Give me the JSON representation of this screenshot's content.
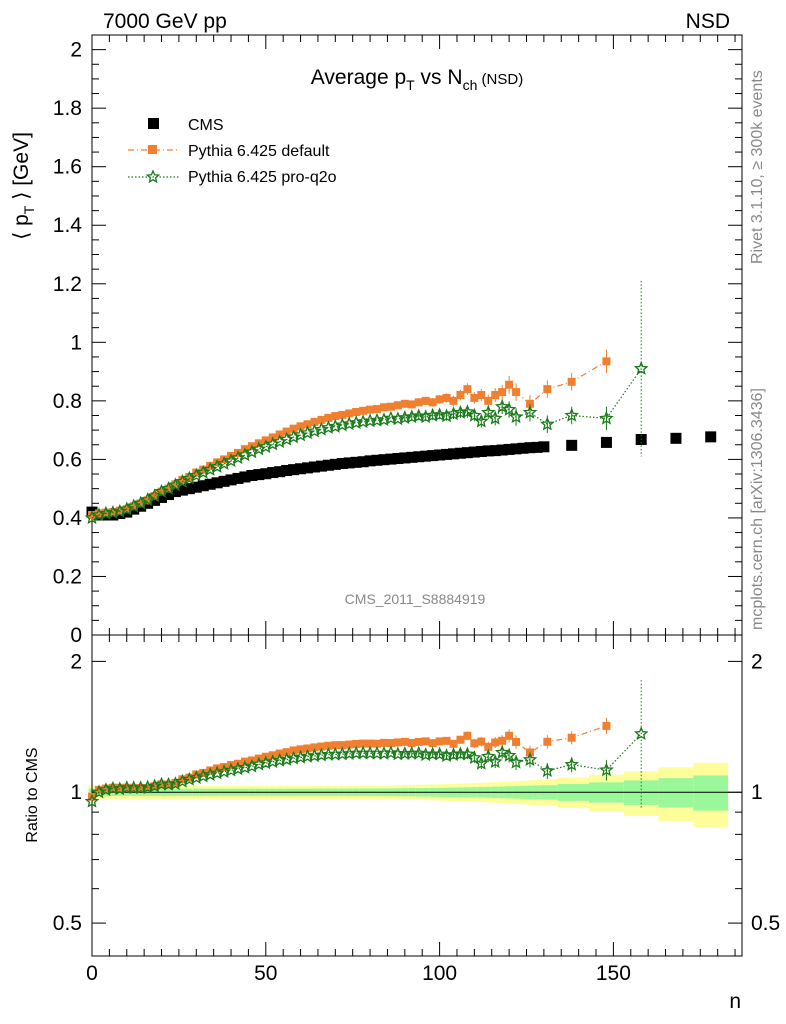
{
  "header": {
    "left": "7000 GeV pp",
    "right": "NSD",
    "side_top": "Rivet 3.1.10, ≥ 300k events",
    "side_bottom": "mcplots.cern.ch [arXiv:1306.3436]",
    "watermark": "CMS_2011_S8884919"
  },
  "colors": {
    "cms": "#000000",
    "pythia_default": "#f08030",
    "pythia_proq2o": "#1a7a1a",
    "band_inner": "#9af79a",
    "band_outer": "#fdfd9a"
  },
  "chart_data": {
    "type": "scatter",
    "title_parts": [
      "Average p",
      "T",
      " vs N",
      "ch",
      " (NSD)"
    ],
    "ylabel_parts": [
      "⟨ p",
      "T",
      " ⟩ [GeV]"
    ],
    "xlabel": "n",
    "ratio_ylabel": "Ratio to CMS",
    "xlim": [
      0,
      187
    ],
    "ylim": [
      0,
      2.05
    ],
    "ratio_ylim": [
      0.42,
      2.3
    ],
    "ratio_log": true,
    "x_ticks": [
      0,
      50,
      100,
      150
    ],
    "y_ticks": [
      0,
      0.2,
      0.4,
      0.6,
      0.8,
      1,
      1.2,
      1.4,
      1.6,
      1.8,
      2
    ],
    "y_tick_labels": [
      "0",
      "0.2",
      "0.4",
      "0.6",
      "0.8",
      "1",
      "1.2",
      "1.4",
      "1.6",
      "1.8",
      "2"
    ],
    "ratio_ticks": [
      0.5,
      1,
      2
    ],
    "ratio_tick_labels": [
      "0.5",
      "1",
      "2"
    ],
    "legend_position": "top-left",
    "series": [
      {
        "name": "CMS",
        "style": "square",
        "points": [
          [
            0,
            0.42
          ],
          [
            2,
            0.41
          ],
          [
            4,
            0.41
          ],
          [
            6,
            0.41
          ],
          [
            8,
            0.415
          ],
          [
            10,
            0.42
          ],
          [
            12,
            0.43
          ],
          [
            14,
            0.44
          ],
          [
            16,
            0.45
          ],
          [
            18,
            0.46
          ],
          [
            20,
            0.47
          ],
          [
            22,
            0.48
          ],
          [
            24,
            0.49
          ],
          [
            26,
            0.495
          ],
          [
            28,
            0.5
          ],
          [
            30,
            0.505
          ],
          [
            32,
            0.51
          ],
          [
            34,
            0.515
          ],
          [
            36,
            0.52
          ],
          [
            38,
            0.525
          ],
          [
            40,
            0.53
          ],
          [
            42,
            0.535
          ],
          [
            44,
            0.54
          ],
          [
            46,
            0.545
          ],
          [
            48,
            0.548
          ],
          [
            50,
            0.551
          ],
          [
            52,
            0.555
          ],
          [
            54,
            0.558
          ],
          [
            56,
            0.562
          ],
          [
            58,
            0.565
          ],
          [
            60,
            0.568
          ],
          [
            62,
            0.571
          ],
          [
            64,
            0.574
          ],
          [
            66,
            0.577
          ],
          [
            68,
            0.58
          ],
          [
            70,
            0.583
          ],
          [
            72,
            0.586
          ],
          [
            74,
            0.588
          ],
          [
            76,
            0.59
          ],
          [
            78,
            0.592
          ],
          [
            80,
            0.595
          ],
          [
            82,
            0.597
          ],
          [
            84,
            0.599
          ],
          [
            86,
            0.601
          ],
          [
            88,
            0.603
          ],
          [
            90,
            0.605
          ],
          [
            92,
            0.607
          ],
          [
            94,
            0.609
          ],
          [
            96,
            0.611
          ],
          [
            98,
            0.613
          ],
          [
            100,
            0.615
          ],
          [
            102,
            0.617
          ],
          [
            104,
            0.619
          ],
          [
            106,
            0.621
          ],
          [
            108,
            0.623
          ],
          [
            110,
            0.625
          ],
          [
            112,
            0.627
          ],
          [
            114,
            0.629
          ],
          [
            116,
            0.63
          ],
          [
            118,
            0.632
          ],
          [
            120,
            0.634
          ],
          [
            122,
            0.636
          ],
          [
            124,
            0.638
          ],
          [
            126,
            0.64
          ],
          [
            128,
            0.641
          ],
          [
            130,
            0.643
          ],
          [
            138,
            0.648
          ],
          [
            148,
            0.658
          ],
          [
            158,
            0.668
          ],
          [
            168,
            0.672
          ],
          [
            178,
            0.677
          ]
        ]
      },
      {
        "name": "Pythia 6.425 default",
        "style": "square-dashdot",
        "points": [
          [
            0,
            0.41,
            0.01
          ],
          [
            2,
            0.415,
            0.01
          ],
          [
            4,
            0.418,
            0.01
          ],
          [
            6,
            0.42,
            0.01
          ],
          [
            8,
            0.425,
            0.01
          ],
          [
            10,
            0.43,
            0.01
          ],
          [
            12,
            0.44,
            0.01
          ],
          [
            14,
            0.45,
            0.01
          ],
          [
            16,
            0.46,
            0.01
          ],
          [
            18,
            0.475,
            0.01
          ],
          [
            20,
            0.49,
            0.01
          ],
          [
            22,
            0.5,
            0.01
          ],
          [
            24,
            0.515,
            0.01
          ],
          [
            26,
            0.53,
            0.01
          ],
          [
            28,
            0.54,
            0.01
          ],
          [
            30,
            0.555,
            0.01
          ],
          [
            32,
            0.565,
            0.01
          ],
          [
            34,
            0.578,
            0.01
          ],
          [
            36,
            0.59,
            0.01
          ],
          [
            38,
            0.6,
            0.01
          ],
          [
            40,
            0.612,
            0.01
          ],
          [
            42,
            0.622,
            0.01
          ],
          [
            44,
            0.635,
            0.01
          ],
          [
            46,
            0.645,
            0.01
          ],
          [
            48,
            0.655,
            0.01
          ],
          [
            50,
            0.665,
            0.01
          ],
          [
            52,
            0.675,
            0.01
          ],
          [
            54,
            0.685,
            0.01
          ],
          [
            56,
            0.695,
            0.01
          ],
          [
            58,
            0.705,
            0.01
          ],
          [
            60,
            0.713,
            0.01
          ],
          [
            62,
            0.72,
            0.01
          ],
          [
            64,
            0.728,
            0.01
          ],
          [
            66,
            0.735,
            0.01
          ],
          [
            68,
            0.742,
            0.01
          ],
          [
            70,
            0.748,
            0.01
          ],
          [
            72,
            0.752,
            0.01
          ],
          [
            74,
            0.757,
            0.01
          ],
          [
            76,
            0.762,
            0.01
          ],
          [
            78,
            0.766,
            0.01
          ],
          [
            80,
            0.77,
            0.012
          ],
          [
            82,
            0.772,
            0.012
          ],
          [
            84,
            0.778,
            0.012
          ],
          [
            86,
            0.78,
            0.012
          ],
          [
            88,
            0.785,
            0.012
          ],
          [
            90,
            0.79,
            0.013
          ],
          [
            92,
            0.788,
            0.013
          ],
          [
            94,
            0.795,
            0.014
          ],
          [
            96,
            0.8,
            0.014
          ],
          [
            98,
            0.795,
            0.015
          ],
          [
            100,
            0.805,
            0.015
          ],
          [
            102,
            0.81,
            0.016
          ],
          [
            104,
            0.8,
            0.017
          ],
          [
            106,
            0.82,
            0.018
          ],
          [
            108,
            0.84,
            0.02
          ],
          [
            110,
            0.81,
            0.02
          ],
          [
            112,
            0.82,
            0.021
          ],
          [
            114,
            0.8,
            0.022
          ],
          [
            116,
            0.82,
            0.024
          ],
          [
            118,
            0.83,
            0.025
          ],
          [
            120,
            0.855,
            0.03
          ],
          [
            122,
            0.83,
            0.03
          ],
          [
            126,
            0.79,
            0.03
          ],
          [
            131,
            0.84,
            0.03
          ],
          [
            138,
            0.865,
            0.03
          ],
          [
            148,
            0.935,
            0.04
          ]
        ]
      },
      {
        "name": "Pythia 6.425 pro-q2o",
        "style": "star-dotted",
        "points": [
          [
            0,
            0.4,
            0.01
          ],
          [
            2,
            0.41,
            0.01
          ],
          [
            4,
            0.415,
            0.01
          ],
          [
            6,
            0.418,
            0.01
          ],
          [
            8,
            0.422,
            0.01
          ],
          [
            10,
            0.43,
            0.01
          ],
          [
            12,
            0.44,
            0.01
          ],
          [
            14,
            0.45,
            0.01
          ],
          [
            16,
            0.462,
            0.01
          ],
          [
            18,
            0.475,
            0.01
          ],
          [
            20,
            0.49,
            0.01
          ],
          [
            22,
            0.5,
            0.01
          ],
          [
            24,
            0.512,
            0.01
          ],
          [
            26,
            0.524,
            0.01
          ],
          [
            28,
            0.535,
            0.01
          ],
          [
            30,
            0.545,
            0.01
          ],
          [
            32,
            0.555,
            0.01
          ],
          [
            34,
            0.565,
            0.01
          ],
          [
            36,
            0.575,
            0.01
          ],
          [
            38,
            0.585,
            0.01
          ],
          [
            40,
            0.595,
            0.01
          ],
          [
            42,
            0.605,
            0.01
          ],
          [
            44,
            0.615,
            0.01
          ],
          [
            46,
            0.625,
            0.01
          ],
          [
            48,
            0.635,
            0.01
          ],
          [
            50,
            0.643,
            0.01
          ],
          [
            52,
            0.652,
            0.01
          ],
          [
            54,
            0.66,
            0.01
          ],
          [
            56,
            0.668,
            0.01
          ],
          [
            58,
            0.676,
            0.01
          ],
          [
            60,
            0.683,
            0.01
          ],
          [
            62,
            0.69,
            0.01
          ],
          [
            64,
            0.696,
            0.01
          ],
          [
            66,
            0.702,
            0.01
          ],
          [
            68,
            0.708,
            0.01
          ],
          [
            70,
            0.712,
            0.01
          ],
          [
            72,
            0.717,
            0.01
          ],
          [
            74,
            0.721,
            0.01
          ],
          [
            76,
            0.725,
            0.01
          ],
          [
            78,
            0.728,
            0.01
          ],
          [
            80,
            0.731,
            0.011
          ],
          [
            82,
            0.733,
            0.011
          ],
          [
            84,
            0.735,
            0.011
          ],
          [
            86,
            0.74,
            0.012
          ],
          [
            88,
            0.738,
            0.012
          ],
          [
            90,
            0.742,
            0.013
          ],
          [
            92,
            0.745,
            0.013
          ],
          [
            94,
            0.748,
            0.014
          ],
          [
            96,
            0.745,
            0.014
          ],
          [
            98,
            0.75,
            0.015
          ],
          [
            100,
            0.752,
            0.015
          ],
          [
            102,
            0.748,
            0.016
          ],
          [
            104,
            0.755,
            0.017
          ],
          [
            106,
            0.76,
            0.018
          ],
          [
            108,
            0.762,
            0.02
          ],
          [
            110,
            0.75,
            0.02
          ],
          [
            112,
            0.73,
            0.021
          ],
          [
            114,
            0.76,
            0.022
          ],
          [
            116,
            0.74,
            0.024
          ],
          [
            118,
            0.78,
            0.025
          ],
          [
            120,
            0.77,
            0.028
          ],
          [
            122,
            0.745,
            0.03
          ],
          [
            126,
            0.76,
            0.03
          ],
          [
            131,
            0.72,
            0.03
          ],
          [
            138,
            0.75,
            0.03
          ],
          [
            148,
            0.74,
            0.04
          ],
          [
            158,
            0.91,
            0.3
          ]
        ]
      }
    ]
  }
}
